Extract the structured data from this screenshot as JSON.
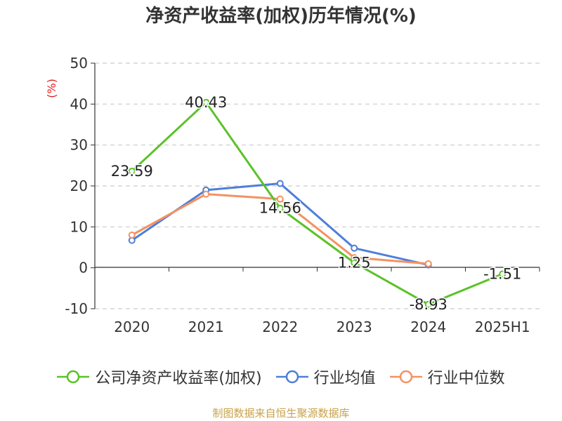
{
  "title": "净资产收益率(加权)历年情况(%)",
  "source_note": "制图数据来自恒生聚源数据库",
  "chart_data": {
    "type": "line",
    "title": "净资产收益率(加权)历年情况(%)",
    "ylabel": "(%)",
    "xlabel": "",
    "ylim": [
      -10,
      50
    ],
    "yticks": [
      -10,
      0,
      10,
      20,
      30,
      40,
      50
    ],
    "categories": [
      "2020",
      "2021",
      "2022",
      "2023",
      "2024",
      "2025H1"
    ],
    "grid": true,
    "legend_position": "bottom",
    "series": [
      {
        "name": "公司净资产收益率(加权)",
        "color": "#5ac229",
        "values": [
          23.59,
          40.43,
          14.56,
          1.25,
          -8.93,
          -1.51
        ],
        "labels": [
          "23.59",
          "40.43",
          "14.56",
          "1.25",
          "-8.93",
          "-1.51"
        ]
      },
      {
        "name": "行业均值",
        "color": "#4d7fd9",
        "values": [
          6.7,
          19.0,
          20.6,
          4.8,
          0.7,
          null
        ]
      },
      {
        "name": "行业中位数",
        "color": "#f39262",
        "values": [
          8.0,
          18.0,
          16.8,
          2.5,
          1.0,
          null
        ]
      }
    ]
  }
}
